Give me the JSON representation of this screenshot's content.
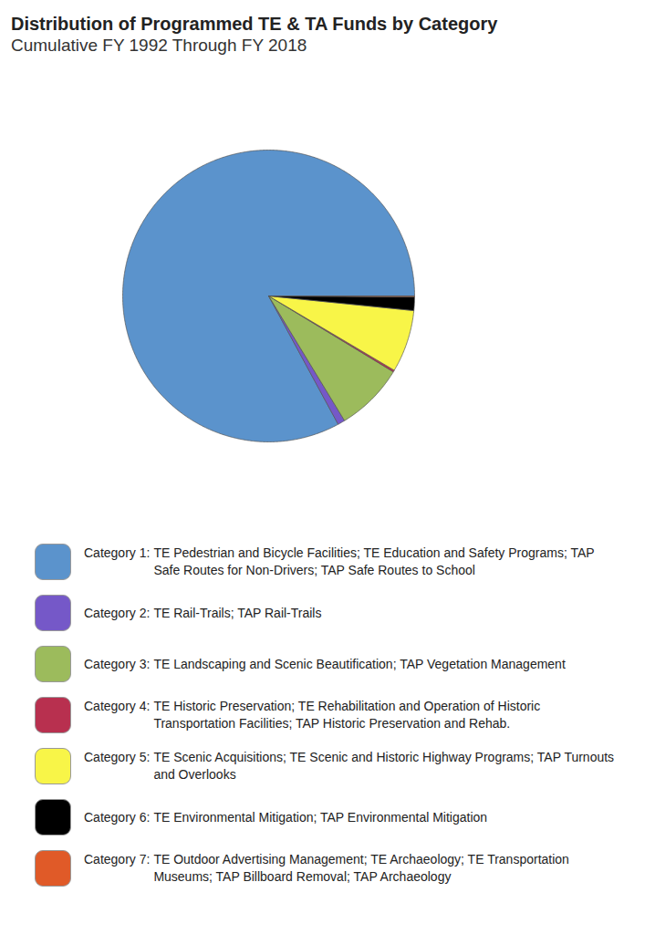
{
  "chart_data": {
    "type": "pie",
    "title": "Distribution of Programmed TE & TA Funds by Category",
    "subtitle": "Cumulative FY 1992 Through FY 2018",
    "categories": [
      "Category 1: TE Pedestrian and Bicycle Facilities; TE Education and Safety Programs; TAP Safe Routes for Non-Drivers; TAP Safe Routes to School",
      "Category 2: TE Rail-Trails; TAP Rail-Trails",
      "Category 3: TE Landscaping and Scenic Beautification; TAP Vegetation Management",
      "Category 4: TE Historic Preservation; TE Rehabilitation and Operation of Historic Transportation Facilities; TAP Historic Preservation and Rehab.",
      "Category 5: TE Scenic Acquisitions; TE Scenic and Historic Highway Programs; TAP Turnouts and Overlooks",
      "Category 6: TE Environmental Mitigation; TAP Environmental Mitigation",
      "Category 7: TE Outdoor Advertising Management; TE Archaeology; TE Transportation Museums; TAP Billboard Removal; TAP Archaeology"
    ],
    "values": [
      82.9,
      0.8,
      7.6,
      0.2,
      6.9,
      1.5,
      0.1
    ],
    "colors": [
      "#5b93cc",
      "#7558c8",
      "#9cbb5c",
      "#b8304f",
      "#f8f548",
      "#000000",
      "#e05a28"
    ],
    "legend": "bottom"
  }
}
